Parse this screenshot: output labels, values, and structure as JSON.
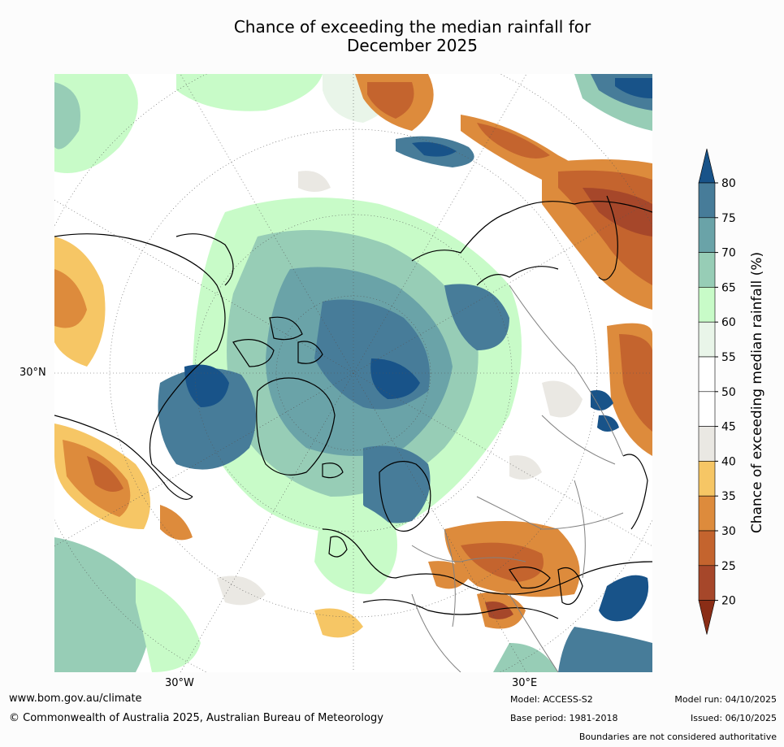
{
  "title_line1": "Chance of exceeding the median rainfall for",
  "title_line2": "December 2025",
  "map": {
    "projection": "north-polar-stereographic",
    "lat_label": "30°N",
    "lon_labels": {
      "west": "30°W",
      "east": "30°E"
    },
    "colors": {
      "ocean_bg": "#ffffff",
      "coast": "#000000",
      "borders": "#808080",
      "graticule": "#555555"
    }
  },
  "colorbar": {
    "label": "Chance of exceeding median rainfall (%)",
    "ticks": [
      "20",
      "25",
      "30",
      "35",
      "40",
      "45",
      "50",
      "55",
      "60",
      "65",
      "70",
      "75",
      "80"
    ],
    "bins": [
      {
        "range": "<20",
        "color": "#8a2d16"
      },
      {
        "range": "20-25",
        "color": "#a6472a"
      },
      {
        "range": "25-30",
        "color": "#c4642e"
      },
      {
        "range": "30-35",
        "color": "#dd8b3c"
      },
      {
        "range": "35-40",
        "color": "#f6c665"
      },
      {
        "range": "40-45",
        "color": "#eae8e3"
      },
      {
        "range": "45-50",
        "color": "#ffffff"
      },
      {
        "range": "50-55",
        "color": "#ffffff"
      },
      {
        "range": "55-60",
        "color": "#e9f5e9"
      },
      {
        "range": "60-65",
        "color": "#c8fbc8"
      },
      {
        "range": "65-70",
        "color": "#97cdb6"
      },
      {
        "range": "70-75",
        "color": "#6aa3a8"
      },
      {
        "range": "75-80",
        "color": "#477c99"
      },
      {
        "range": ">80",
        "color": "#185389"
      }
    ]
  },
  "footer": {
    "website": "www.bom.gov.au/climate",
    "copyright": "© Commonwealth of Australia 2025, Australian Bureau of Meteorology",
    "model": "Model: ACCESS-S2",
    "base_period": "Base period: 1981-2018",
    "model_run": "Model run: 04/10/2025",
    "issued": "Issued: 06/10/2025",
    "disclaimer": "Boundaries are not considered authoritative"
  }
}
